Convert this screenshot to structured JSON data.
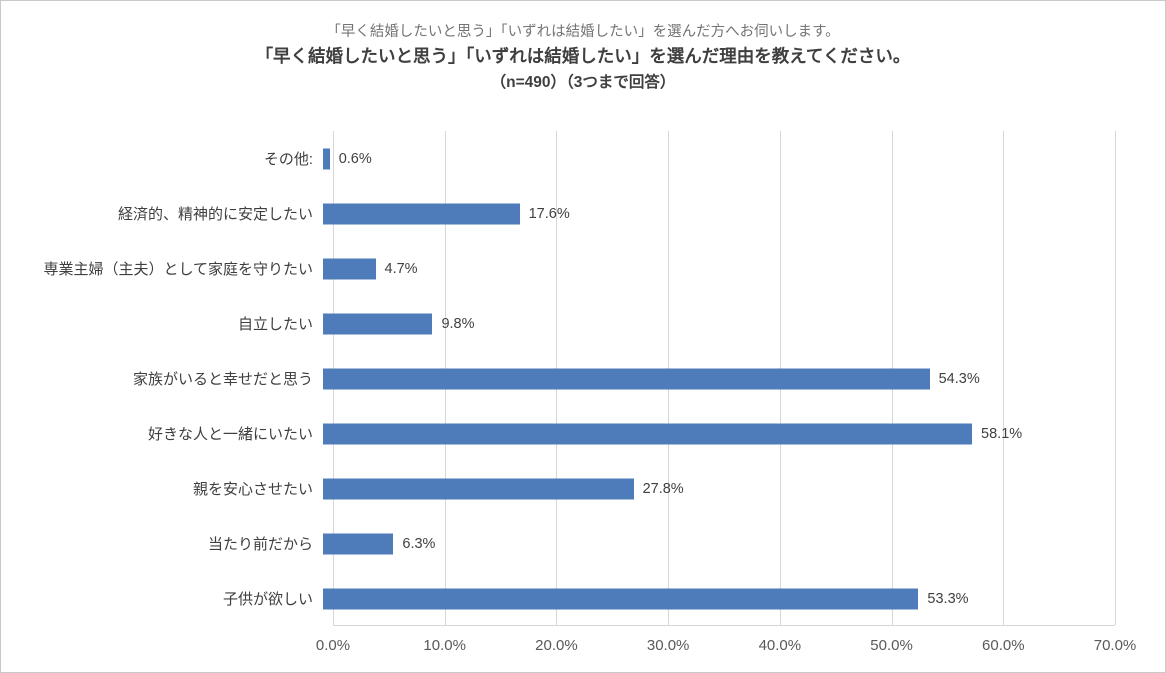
{
  "title": {
    "line1": "「早く結婚したいと思う」「いずれは結婚したい」を選んだ方へお伺いします。",
    "line2": "「早く結婚したいと思う」「いずれは結婚したい」を選んだ理由を教えてください。",
    "line3": "（n=490）（3つまで回答）"
  },
  "chart_data": {
    "type": "bar",
    "orientation": "horizontal",
    "categories": [
      "その他:",
      "経済的、精神的に安定したい",
      "専業主婦（主夫）として家庭を守りたい",
      "自立したい",
      "家族がいると幸せだと思う",
      "好きな人と一緒にいたい",
      "親を安心させたい",
      "当たり前だから",
      "子供が欲しい"
    ],
    "values": [
      0.6,
      17.6,
      4.7,
      9.8,
      54.3,
      58.1,
      27.8,
      6.3,
      53.3
    ],
    "value_labels": [
      "0.6%",
      "17.6%",
      "4.7%",
      "9.8%",
      "54.3%",
      "58.1%",
      "27.8%",
      "6.3%",
      "53.3%"
    ],
    "xlim": [
      0,
      70
    ],
    "x_ticks": [
      0,
      10,
      20,
      30,
      40,
      50,
      60,
      70
    ],
    "x_tick_labels": [
      "0.0%",
      "10.0%",
      "20.0%",
      "30.0%",
      "40.0%",
      "50.0%",
      "60.0%",
      "70.0%"
    ],
    "grid": true,
    "legend": "none",
    "bar_color": "#4e7cba",
    "gridline_color": "#d6d6d6",
    "title": "「早く結婚したいと思う」「いずれは結婚したい」を選んだ理由を教えてください。（n=490）（3つまで回答）",
    "xlabel": "",
    "ylabel": ""
  }
}
